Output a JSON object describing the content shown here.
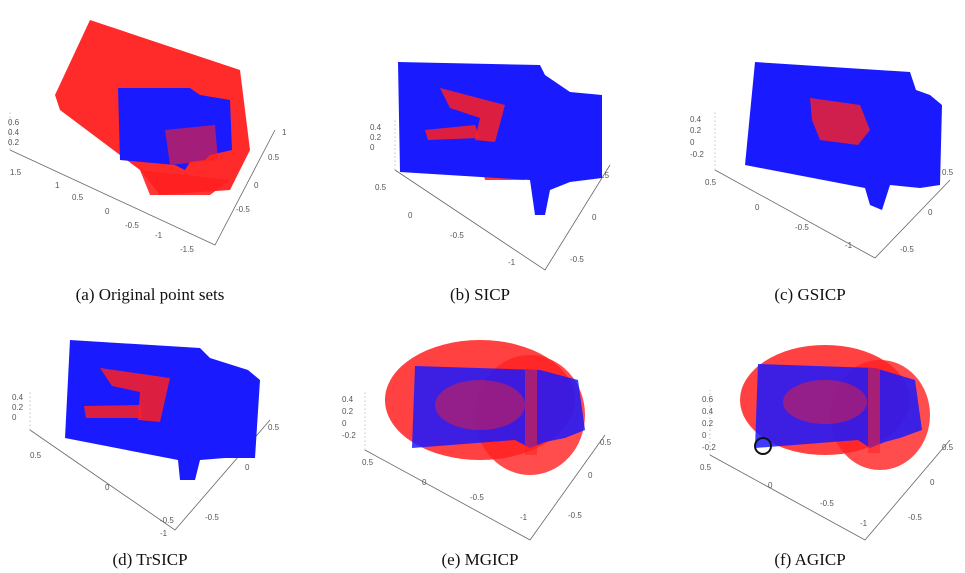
{
  "figure": {
    "panels": [
      {
        "id": "a",
        "caption": "(a) Original point sets",
        "ticks": [
          "0.6",
          "0.4",
          "0.2",
          "1.5",
          "1",
          "0.5",
          "0",
          "-0.5",
          "-1",
          "-1.5",
          "1",
          "0.5",
          "0",
          "-0.5"
        ]
      },
      {
        "id": "b",
        "caption": "(b) SICP",
        "ticks": [
          "0.4",
          "0.2",
          "0",
          "0.5",
          "0",
          "-0.5",
          "-1",
          "0.5",
          "0",
          "-0.5"
        ]
      },
      {
        "id": "c",
        "caption": "(c) GSICP",
        "ticks": [
          "0.4",
          "0.2",
          "0",
          "-0.2",
          "0.5",
          "0",
          "-0.5",
          "-1",
          "0.5",
          "0",
          "-0.5"
        ]
      },
      {
        "id": "d",
        "caption": "(d) TrSICP",
        "ticks": [
          "0.4",
          "0.2",
          "0",
          "0.5",
          "0",
          "-0.5",
          "-1",
          "0.5",
          "0",
          "-0.5"
        ]
      },
      {
        "id": "e",
        "caption": "(e) MGICP",
        "ticks": [
          "0.4",
          "0.2",
          "0",
          "-0.2",
          "0.5",
          "0",
          "-0.5",
          "-1",
          "0.5",
          "0",
          "-0.5"
        ]
      },
      {
        "id": "f",
        "caption": "(f) AGICP",
        "ticks": [
          "0.6",
          "0.4",
          "0.2",
          "0",
          "-0.2",
          "0.5",
          "0",
          "-0.5",
          "-1",
          "0.5",
          "0",
          "-0.5"
        ]
      }
    ],
    "colors": {
      "source": "#ff2020",
      "target": "#1a1aff"
    }
  }
}
